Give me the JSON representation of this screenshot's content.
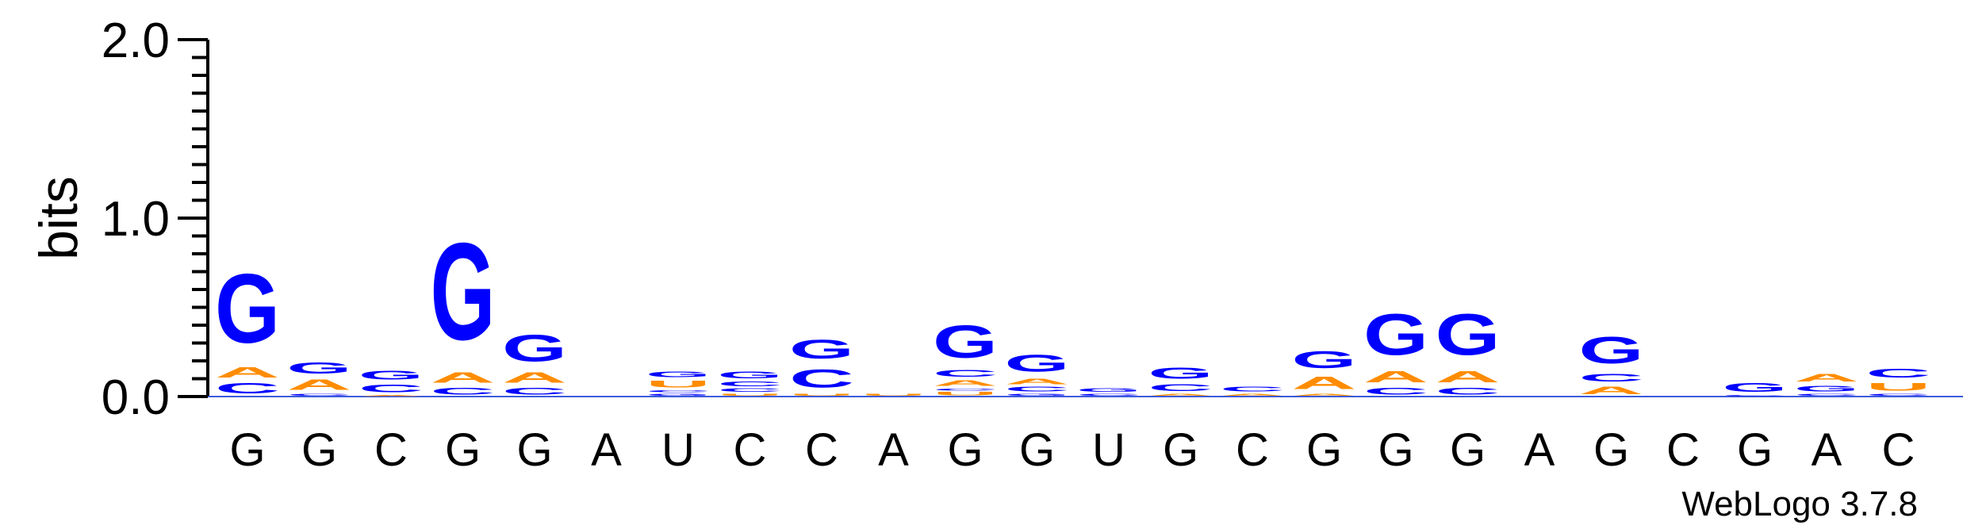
{
  "chart_data": {
    "type": "sequence-logo",
    "ylabel": "bits",
    "ylim": [
      0,
      2
    ],
    "yticks": [
      "0.0",
      "1.0",
      "2.0"
    ],
    "credit": "WebLogo 3.7.8",
    "colors": {
      "G": "#0000ff",
      "C": "#0000ff",
      "A": "#ff8c00",
      "U": "#ff8c00"
    },
    "positions": [
      {
        "label": "G",
        "stack": [
          {
            "letter": "C",
            "bits": 0.09
          },
          {
            "letter": "A",
            "bits": 0.09
          },
          {
            "letter": "G",
            "bits": 0.62
          }
        ]
      },
      {
        "label": "G",
        "stack": [
          {
            "letter": "C",
            "bits": 0.02
          },
          {
            "letter": "A",
            "bits": 0.09
          },
          {
            "letter": "G",
            "bits": 0.1
          }
        ]
      },
      {
        "label": "C",
        "stack": [
          {
            "letter": "A",
            "bits": 0.01
          },
          {
            "letter": "C",
            "bits": 0.07
          },
          {
            "letter": "G",
            "bits": 0.08
          }
        ]
      },
      {
        "label": "G",
        "stack": [
          {
            "letter": "C",
            "bits": 0.06
          },
          {
            "letter": "A",
            "bits": 0.09
          },
          {
            "letter": "G",
            "bits": 0.87
          }
        ]
      },
      {
        "label": "G",
        "stack": [
          {
            "letter": "C",
            "bits": 0.06
          },
          {
            "letter": "A",
            "bits": 0.09
          },
          {
            "letter": "G",
            "bits": 0.24
          }
        ]
      },
      {
        "label": "A",
        "stack": []
      },
      {
        "label": "U",
        "stack": [
          {
            "letter": "G",
            "bits": 0.02
          },
          {
            "letter": "C",
            "bits": 0.02
          },
          {
            "letter": "U",
            "bits": 0.06
          },
          {
            "letter": "G",
            "bits": 0.05
          }
        ]
      },
      {
        "label": "C",
        "stack": [
          {
            "letter": "U",
            "bits": 0.02
          },
          {
            "letter": "C",
            "bits": 0.03
          },
          {
            "letter": "C",
            "bits": 0.04
          },
          {
            "letter": "G",
            "bits": 0.06
          }
        ]
      },
      {
        "label": "C",
        "stack": [
          {
            "letter": "U",
            "bits": 0.02
          },
          {
            "letter": "C",
            "bits": 0.16
          },
          {
            "letter": "G",
            "bits": 0.17
          }
        ]
      },
      {
        "label": "A",
        "stack": [
          {
            "letter": "U",
            "bits": 0.02
          }
        ]
      },
      {
        "label": "G",
        "stack": [
          {
            "letter": "U",
            "bits": 0.03
          },
          {
            "letter": "C",
            "bits": 0.02
          },
          {
            "letter": "A",
            "bits": 0.05
          },
          {
            "letter": "C",
            "bits": 0.06
          },
          {
            "letter": "G",
            "bits": 0.29
          }
        ]
      },
      {
        "label": "G",
        "stack": [
          {
            "letter": "G",
            "bits": 0.02
          },
          {
            "letter": "C",
            "bits": 0.04
          },
          {
            "letter": "A",
            "bits": 0.05
          },
          {
            "letter": "G",
            "bits": 0.15
          }
        ]
      },
      {
        "label": "U",
        "stack": [
          {
            "letter": "C",
            "bits": 0.02
          },
          {
            "letter": "G",
            "bits": 0.03
          }
        ]
      },
      {
        "label": "G",
        "stack": [
          {
            "letter": "A",
            "bits": 0.02
          },
          {
            "letter": "C",
            "bits": 0.06
          },
          {
            "letter": "G",
            "bits": 0.1
          }
        ]
      },
      {
        "label": "C",
        "stack": [
          {
            "letter": "A",
            "bits": 0.02
          },
          {
            "letter": "C",
            "bits": 0.04
          }
        ]
      },
      {
        "label": "G",
        "stack": [
          {
            "letter": "A",
            "bits": 0.02
          },
          {
            "letter": "A",
            "bits": 0.11
          },
          {
            "letter": "G",
            "bits": 0.15
          }
        ]
      },
      {
        "label": "G",
        "stack": [
          {
            "letter": "C",
            "bits": 0.06
          },
          {
            "letter": "A",
            "bits": 0.1
          },
          {
            "letter": "G",
            "bits": 0.37
          }
        ]
      },
      {
        "label": "G",
        "stack": [
          {
            "letter": "C",
            "bits": 0.06
          },
          {
            "letter": "A",
            "bits": 0.1
          },
          {
            "letter": "G",
            "bits": 0.37
          }
        ]
      },
      {
        "label": "A",
        "stack": []
      },
      {
        "label": "G",
        "stack": [
          {
            "letter": "A",
            "bits": 0.07
          },
          {
            "letter": "C",
            "bits": 0.07
          },
          {
            "letter": "G",
            "bits": 0.24
          }
        ]
      },
      {
        "label": "C",
        "stack": []
      },
      {
        "label": "G",
        "stack": [
          {
            "letter": "C",
            "bits": 0.01
          },
          {
            "letter": "G",
            "bits": 0.08
          }
        ]
      },
      {
        "label": "A",
        "stack": [
          {
            "letter": "C",
            "bits": 0.02
          },
          {
            "letter": "G",
            "bits": 0.05
          },
          {
            "letter": "A",
            "bits": 0.07
          }
        ]
      },
      {
        "label": "C",
        "stack": [
          {
            "letter": "C",
            "bits": 0.02
          },
          {
            "letter": "U",
            "bits": 0.07
          },
          {
            "letter": "C",
            "bits": 0.08
          }
        ]
      }
    ]
  }
}
